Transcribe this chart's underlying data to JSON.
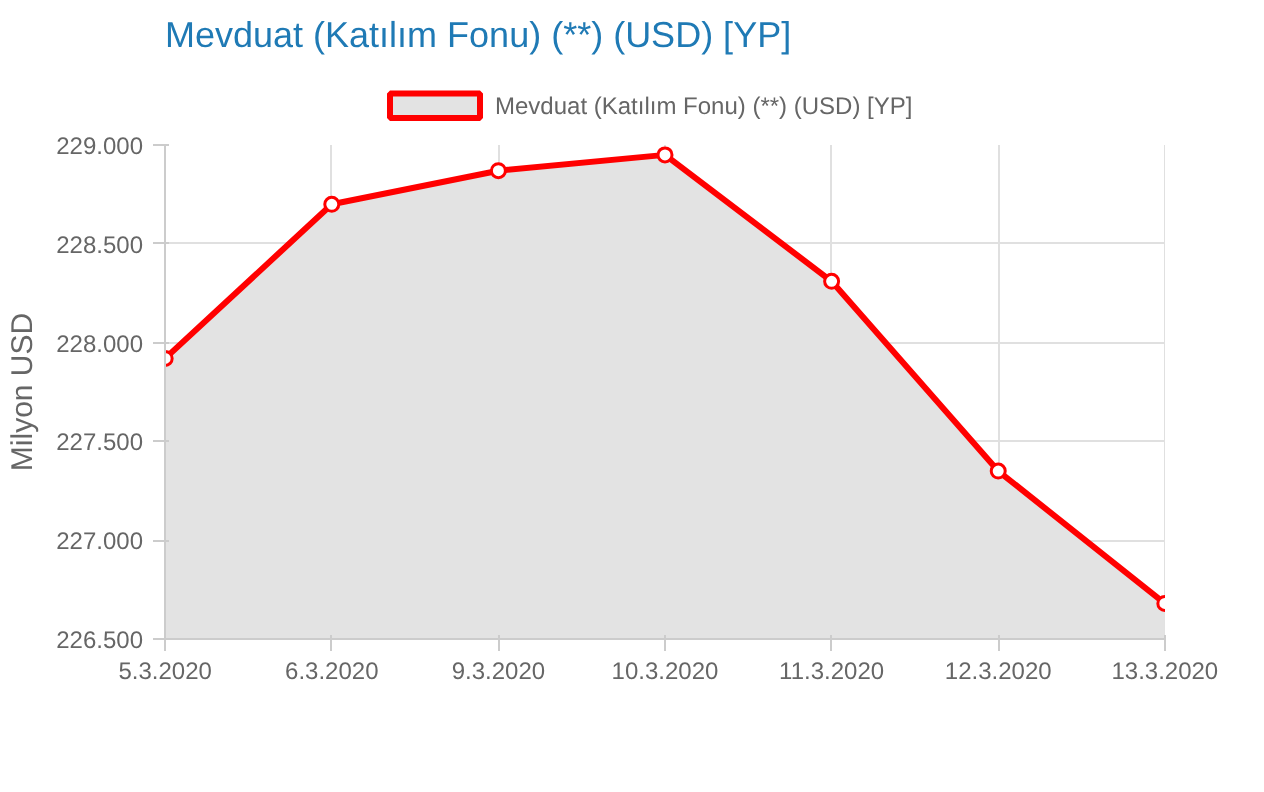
{
  "chart_data": {
    "type": "area",
    "title": "Mevduat (Katılım Fonu) (**) (USD) [YP]",
    "ylabel": "Milyon USD",
    "categories": [
      "5.3.2020",
      "6.3.2020",
      "9.3.2020",
      "10.3.2020",
      "11.3.2020",
      "12.3.2020",
      "13.3.2020"
    ],
    "series": [
      {
        "name": "Mevduat (Katılım Fonu) (**) (USD) [YP]",
        "color": "#ff0000",
        "values": [
          227920,
          228700,
          228870,
          228950,
          228310,
          227350,
          226680
        ]
      }
    ],
    "ylim": [
      226500,
      229000
    ],
    "yticks": [
      {
        "value": 226500,
        "label": "226.500"
      },
      {
        "value": 227000,
        "label": "227.000"
      },
      {
        "value": 227500,
        "label": "227.500"
      },
      {
        "value": 228000,
        "label": "228.000"
      },
      {
        "value": 228500,
        "label": "228.500"
      },
      {
        "value": 229000,
        "label": "229.000"
      }
    ],
    "grid": true,
    "legend": "top",
    "marker": "circle",
    "line_style": "solid"
  }
}
